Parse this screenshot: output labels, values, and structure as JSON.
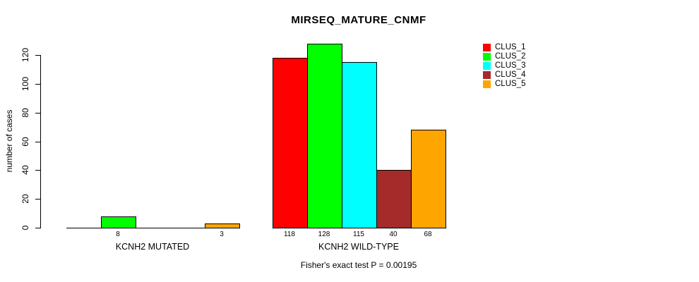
{
  "chart_data": {
    "type": "bar",
    "title": "MIRSEQ_MATURE_CNMF",
    "ylabel": "number of cases",
    "xlabel": "",
    "ylim": [
      0,
      120
    ],
    "yticks": [
      0,
      20,
      40,
      60,
      80,
      100,
      120
    ],
    "grid": false,
    "legend_position": "top-right",
    "categories": [
      "KCNH2 MUTATED",
      "KCNH2 WILD-TYPE"
    ],
    "series": [
      {
        "name": "CLUS_1",
        "color": "#FF0000",
        "values": [
          0,
          118
        ]
      },
      {
        "name": "CLUS_2",
        "color": "#00FF00",
        "values": [
          8,
          128
        ]
      },
      {
        "name": "CLUS_3",
        "color": "#00FFFF",
        "values": [
          0,
          115
        ]
      },
      {
        "name": "CLUS_4",
        "color": "#A52A2A",
        "values": [
          0,
          40
        ]
      },
      {
        "name": "CLUS_5",
        "color": "#FFA500",
        "values": [
          3,
          68
        ]
      }
    ],
    "bar_value_labels": {
      "group_1": [
        "8",
        "3"
      ],
      "group_2": [
        "118",
        "128",
        "115",
        "40",
        "68"
      ],
      "note": "zero-value bars have no label"
    },
    "footnote": "Fisher's exact test P = 0.00195"
  }
}
